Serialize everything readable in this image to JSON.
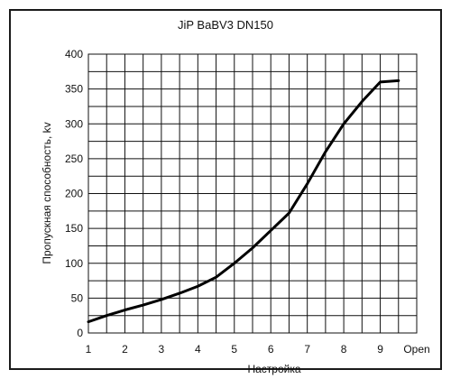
{
  "chart_data": {
    "type": "line",
    "title": "JiP BaBV3 DN150",
    "xlabel": "Настройка",
    "ylabel": "Пропускная способность, kv",
    "x_ticks": [
      "1",
      "2",
      "3",
      "4",
      "5",
      "6",
      "7",
      "8",
      "9",
      "Open"
    ],
    "y_ticks": [
      "0",
      "50",
      "100",
      "150",
      "200",
      "250",
      "300",
      "350",
      "400"
    ],
    "xlim": [
      1,
      10
    ],
    "ylim": [
      0,
      400
    ],
    "grid": true,
    "series": [
      {
        "x": [
          1,
          1.5,
          2,
          2.5,
          3,
          3.5,
          4,
          4.5,
          5,
          5.5,
          6,
          6.5,
          7,
          7.5,
          8,
          8.5,
          9,
          9.5
        ],
        "values": [
          16,
          25,
          33,
          40,
          48,
          57,
          67,
          80,
          100,
          122,
          147,
          172,
          214,
          260,
          300,
          332,
          360,
          362
        ]
      }
    ],
    "line_color": "#000000"
  }
}
